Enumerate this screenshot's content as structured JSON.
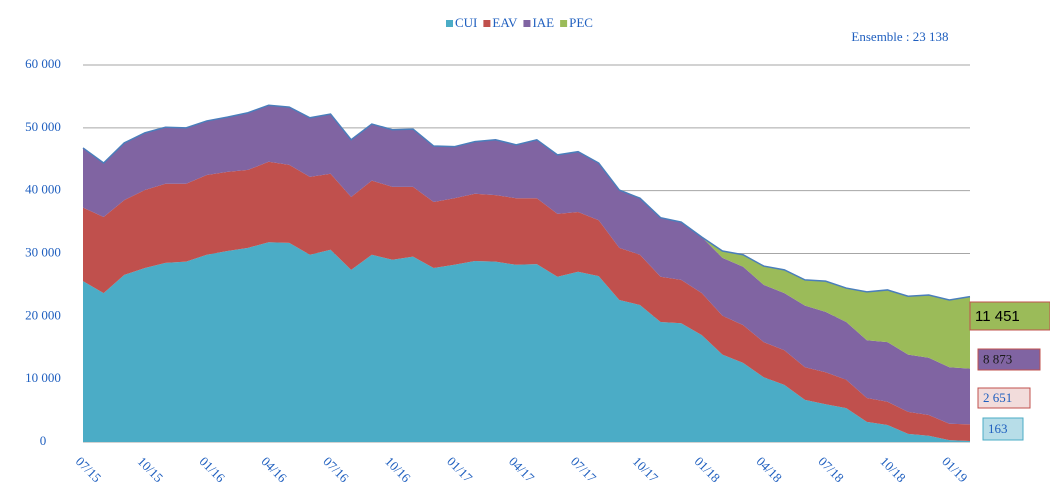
{
  "chart_data": {
    "type": "area",
    "stacked": true,
    "annotation": "Ensemble : 23 138",
    "categories": [
      "07/15",
      null,
      null,
      "10/15",
      null,
      null,
      "01/16",
      null,
      null,
      "04/16",
      null,
      null,
      "07/16",
      null,
      null,
      "10/16",
      null,
      null,
      "01/17",
      null,
      null,
      "04/17",
      null,
      null,
      "07/17",
      null,
      null,
      "10/17",
      null,
      null,
      "01/18",
      null,
      null,
      "04/18",
      null,
      null,
      "07/18",
      null,
      null,
      "10/18",
      null,
      null,
      "01/19",
      null
    ],
    "series": [
      {
        "name": "CUI",
        "color": "#4bacc6",
        "values": [
          25600,
          23700,
          26600,
          27700,
          28500,
          28700,
          29800,
          30400,
          30900,
          31800,
          31700,
          29800,
          30600,
          27400,
          29800,
          29000,
          29500,
          27700,
          28200,
          28800,
          28700,
          28200,
          28300,
          26300,
          27100,
          26400,
          22600,
          21800,
          19100,
          18900,
          17000,
          13900,
          12600,
          10300,
          9100,
          6700,
          6000,
          5400,
          3200,
          2700,
          1300,
          1000,
          300,
          163
        ]
      },
      {
        "name": "EAV",
        "color": "#c0504d",
        "values": [
          11700,
          12100,
          11900,
          12400,
          12600,
          12400,
          12700,
          12600,
          12400,
          12800,
          12400,
          12400,
          12100,
          11600,
          11800,
          11600,
          11100,
          10500,
          10600,
          10700,
          10600,
          10600,
          10500,
          10000,
          9500,
          8900,
          8300,
          8000,
          7200,
          6900,
          6700,
          6200,
          6000,
          5600,
          5500,
          5200,
          5100,
          4500,
          3800,
          3700,
          3500,
          3300,
          2600,
          2651
        ],
        "value_labels": [
          null,
          null,
          null,
          null,
          null,
          null,
          null,
          null,
          null,
          null,
          null,
          null,
          null,
          null,
          null,
          null,
          null,
          null,
          null,
          null,
          null,
          null,
          null,
          null,
          null,
          null,
          null,
          null,
          null,
          null,
          null,
          null,
          null,
          null,
          null,
          null,
          null,
          null,
          null,
          null,
          null,
          null,
          null,
          "2 651"
        ]
      },
      {
        "name": "IAE",
        "color": "#8064a2",
        "values": [
          9500,
          8600,
          9100,
          9100,
          9000,
          8900,
          8600,
          8700,
          9100,
          9000,
          9200,
          9400,
          9500,
          9100,
          9000,
          9100,
          9200,
          8900,
          8200,
          8300,
          8800,
          8500,
          9300,
          9400,
          9600,
          9100,
          9200,
          9000,
          9400,
          9200,
          8900,
          9200,
          9300,
          9100,
          9100,
          9800,
          9600,
          9200,
          9200,
          9500,
          9100,
          9100,
          9000,
          8873
        ],
        "value_labels": [
          null,
          null,
          null,
          null,
          null,
          null,
          null,
          null,
          null,
          null,
          null,
          null,
          null,
          null,
          null,
          null,
          null,
          null,
          null,
          null,
          null,
          null,
          null,
          null,
          null,
          null,
          null,
          null,
          null,
          null,
          null,
          null,
          null,
          null,
          null,
          null,
          null,
          null,
          null,
          null,
          null,
          null,
          null,
          "8 873"
        ]
      },
      {
        "name": "PEC",
        "color": "#9bbb59",
        "values": [
          0,
          0,
          0,
          0,
          0,
          0,
          0,
          0,
          0,
          0,
          0,
          0,
          0,
          0,
          0,
          0,
          0,
          0,
          0,
          0,
          0,
          0,
          0,
          0,
          0,
          0,
          0,
          0,
          0,
          0,
          0,
          1100,
          1900,
          3000,
          3700,
          4100,
          4900,
          5400,
          7700,
          8300,
          9300,
          10000,
          10700,
          11451
        ],
        "value_labels": [
          null,
          null,
          null,
          null,
          null,
          null,
          null,
          null,
          null,
          null,
          null,
          null,
          null,
          null,
          null,
          null,
          null,
          null,
          null,
          null,
          null,
          null,
          null,
          null,
          null,
          null,
          null,
          null,
          null,
          null,
          null,
          null,
          null,
          null,
          null,
          null,
          null,
          null,
          null,
          null,
          null,
          null,
          null,
          "11 451"
        ]
      }
    ],
    "ylim": [
      0,
      60000
    ],
    "yticks": [
      0,
      {
        "value": 10000,
        "label": "10 000"
      },
      {
        "value": 20000,
        "label": "20 000"
      },
      {
        "value": 30000,
        "label": "30 000"
      },
      {
        "value": 40000,
        "label": "40 000"
      },
      {
        "value": 50000,
        "label": "50 000"
      },
      {
        "value": 60000,
        "label": "60 000"
      }
    ],
    "grid": true,
    "legend": "top"
  }
}
